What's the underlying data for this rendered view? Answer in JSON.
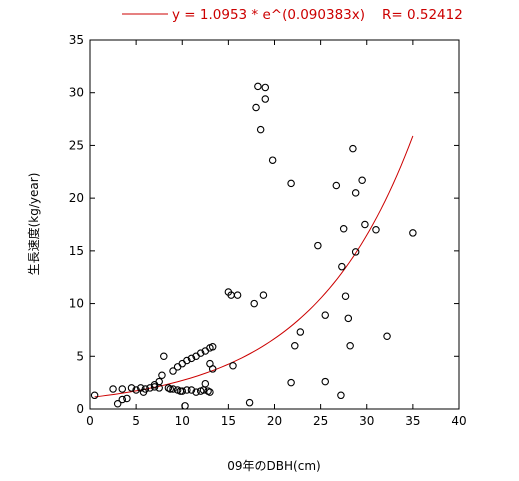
{
  "chart_data": {
    "type": "scatter",
    "xlabel": "09年のDBH(cm)",
    "ylabel": "生長速度(kg/year)",
    "xlim": [
      0,
      40
    ],
    "ylim": [
      0,
      35
    ],
    "xticks": [
      0,
      5,
      10,
      15,
      20,
      25,
      30,
      35,
      40
    ],
    "yticks": [
      0,
      5,
      10,
      15,
      20,
      25,
      30,
      35
    ],
    "grid": false,
    "legend_position": "top-right",
    "marker_color": "#000000",
    "fit_color": "#cc0000",
    "fit": {
      "label": "y = 1.0953 * e^(0.090383x)",
      "r_label": "R= 0.52412",
      "a": 1.0953,
      "b": 0.090383,
      "x_range": [
        0.5,
        35
      ]
    },
    "points": [
      [
        0.5,
        1.3
      ],
      [
        2.5,
        1.9
      ],
      [
        3.0,
        0.5
      ],
      [
        3.5,
        0.9
      ],
      [
        3.5,
        1.9
      ],
      [
        4.0,
        1.0
      ],
      [
        4.5,
        2.0
      ],
      [
        5.0,
        1.8
      ],
      [
        5.5,
        2.0
      ],
      [
        5.8,
        1.6
      ],
      [
        6.0,
        1.9
      ],
      [
        6.5,
        2.0
      ],
      [
        7.0,
        2.1
      ],
      [
        7.0,
        2.3
      ],
      [
        7.5,
        2.0
      ],
      [
        7.5,
        2.6
      ],
      [
        7.8,
        3.2
      ],
      [
        8.0,
        5.0
      ],
      [
        8.5,
        2.0
      ],
      [
        8.7,
        1.9
      ],
      [
        9.0,
        1.9
      ],
      [
        9.0,
        3.6
      ],
      [
        9.5,
        1.8
      ],
      [
        9.5,
        4.0
      ],
      [
        9.8,
        1.7
      ],
      [
        10.0,
        1.7
      ],
      [
        10.0,
        4.3
      ],
      [
        10.3,
        0.3
      ],
      [
        10.5,
        1.8
      ],
      [
        10.5,
        4.6
      ],
      [
        11.0,
        1.8
      ],
      [
        11.0,
        4.8
      ],
      [
        11.5,
        1.6
      ],
      [
        11.5,
        5.0
      ],
      [
        12.0,
        1.7
      ],
      [
        12.0,
        5.3
      ],
      [
        12.3,
        1.8
      ],
      [
        12.5,
        2.4
      ],
      [
        12.5,
        5.5
      ],
      [
        12.8,
        1.7
      ],
      [
        13.0,
        1.6
      ],
      [
        13.0,
        4.3
      ],
      [
        13.0,
        5.8
      ],
      [
        13.3,
        3.8
      ],
      [
        13.3,
        5.9
      ],
      [
        15.0,
        11.1
      ],
      [
        15.3,
        10.8
      ],
      [
        15.5,
        4.1
      ],
      [
        16.0,
        10.8
      ],
      [
        17.3,
        0.6
      ],
      [
        17.8,
        10.0
      ],
      [
        18.0,
        28.6
      ],
      [
        18.2,
        30.6
      ],
      [
        18.5,
        26.5
      ],
      [
        18.8,
        10.8
      ],
      [
        19.0,
        29.4
      ],
      [
        19.0,
        30.5
      ],
      [
        19.8,
        23.6
      ],
      [
        21.8,
        21.4
      ],
      [
        21.8,
        2.5
      ],
      [
        22.2,
        6.0
      ],
      [
        22.8,
        7.3
      ],
      [
        24.7,
        15.5
      ],
      [
        25.5,
        8.9
      ],
      [
        25.5,
        2.6
      ],
      [
        26.7,
        21.2
      ],
      [
        27.2,
        1.3
      ],
      [
        27.3,
        13.5
      ],
      [
        27.5,
        17.1
      ],
      [
        27.7,
        10.7
      ],
      [
        28.0,
        8.6
      ],
      [
        28.2,
        6.0
      ],
      [
        28.5,
        24.7
      ],
      [
        28.8,
        20.5
      ],
      [
        28.8,
        14.9
      ],
      [
        29.5,
        21.7
      ],
      [
        29.8,
        17.5
      ],
      [
        31.0,
        17.0
      ],
      [
        32.2,
        6.9
      ],
      [
        35.0,
        16.7
      ]
    ]
  }
}
